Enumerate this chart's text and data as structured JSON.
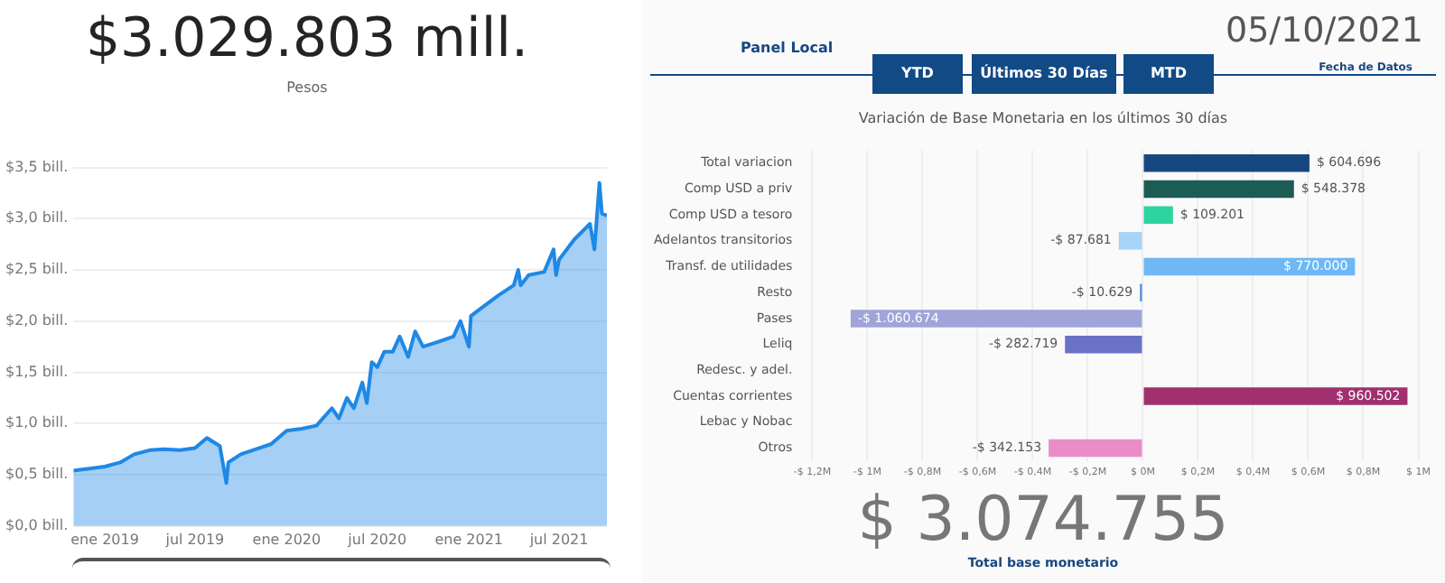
{
  "chart_data": [
    {
      "type": "area",
      "title": "$3.029.803 mill.",
      "subtitle": "Pesos",
      "x": [
        "2018-10-30",
        "2018-12-01",
        "2019-01-01",
        "2019-02-01",
        "2019-03-01",
        "2019-04-01",
        "2019-05-01",
        "2019-06-01",
        "2019-07-01",
        "2019-07-25",
        "2019-08-20",
        "2019-09-02",
        "2019-09-06",
        "2019-10-01",
        "2019-11-01",
        "2019-12-01",
        "2020-01-01",
        "2020-02-01",
        "2020-03-01",
        "2020-04-01",
        "2020-04-15",
        "2020-05-01",
        "2020-05-15",
        "2020-06-01",
        "2020-06-10",
        "2020-06-20",
        "2020-07-01",
        "2020-07-15",
        "2020-08-01",
        "2020-08-15",
        "2020-09-01",
        "2020-09-15",
        "2020-10-01",
        "2020-11-01",
        "2020-12-01",
        "2020-12-15",
        "2021-01-01",
        "2021-01-05",
        "2021-02-01",
        "2021-03-01",
        "2021-04-01",
        "2021-04-10",
        "2021-04-15",
        "2021-05-01",
        "2021-06-01",
        "2021-06-20",
        "2021-06-25",
        "2021-07-01",
        "2021-08-01",
        "2021-09-01",
        "2021-09-10",
        "2021-09-20",
        "2021-09-25",
        "2021-10-05"
      ],
      "series": [
        {
          "color": "#1e88e5",
          "values": [
            0.54,
            0.56,
            0.58,
            0.62,
            0.7,
            0.74,
            0.75,
            0.74,
            0.76,
            0.86,
            0.78,
            0.42,
            0.62,
            0.7,
            0.75,
            0.8,
            0.93,
            0.95,
            0.98,
            1.15,
            1.05,
            1.25,
            1.15,
            1.4,
            1.2,
            1.6,
            1.55,
            1.7,
            1.7,
            1.85,
            1.65,
            1.9,
            1.75,
            1.8,
            1.85,
            2.0,
            1.75,
            2.05,
            2.15,
            2.25,
            2.35,
            2.5,
            2.35,
            2.45,
            2.48,
            2.7,
            2.45,
            2.6,
            2.8,
            2.95,
            2.7,
            3.35,
            3.05,
            3.03
          ]
        }
      ],
      "xlim": [
        "2018-10-30",
        "2021-10-05"
      ],
      "xticks": [
        {
          "value": "2019-01-01",
          "label": "ene 2019"
        },
        {
          "value": "2019-07-01",
          "label": "jul 2019"
        },
        {
          "value": "2020-01-01",
          "label": "ene 2020"
        },
        {
          "value": "2020-07-01",
          "label": "jul 2020"
        },
        {
          "value": "2021-01-01",
          "label": "ene 2021"
        },
        {
          "value": "2021-07-01",
          "label": "jul 2021"
        }
      ],
      "ylim": [
        0,
        3.5
      ],
      "yticks": [
        {
          "value": 0,
          "label": "$0,0 bill."
        },
        {
          "value": 0.5,
          "label": "$0,5 bill."
        },
        {
          "value": 1,
          "label": "$1,0 bill."
        },
        {
          "value": 1.5,
          "label": "$1,5 bill."
        },
        {
          "value": 2,
          "label": "$2,0 bill."
        },
        {
          "value": 2.5,
          "label": "$2,5 bill."
        },
        {
          "value": 3,
          "label": "$3,0 bill."
        },
        {
          "value": 3.5,
          "label": "$3,5 bill."
        }
      ],
      "grid": "y",
      "legend": false
    },
    {
      "type": "bar",
      "orientation": "horizontal",
      "title": "Variación de Base Monetaria en los últimos 30 días",
      "categories": [
        "Total variacion",
        "Comp USD a priv",
        "Comp USD a tesoro",
        "Adelantos transitorios",
        "Transf. de utilidades",
        "Resto",
        "Pases",
        "Leliq",
        "Redesc. y adel.",
        "Cuentas corrientes",
        "Lebac y Nobac",
        "Otros"
      ],
      "values": [
        604696,
        548378,
        109201,
        -87681,
        770000,
        -10629,
        -1060674,
        -282719,
        null,
        960502,
        null,
        -342153
      ],
      "value_labels": [
        "$ 604.696",
        "$ 548.378",
        "$ 109.201",
        "-$ 87.681",
        "$ 770.000",
        "-$ 10.629",
        "-$ 1.060.674",
        "-$ 282.719",
        null,
        "$ 960.502",
        null,
        "-$ 342.153"
      ],
      "colors": [
        "#17477f",
        "#1b5c55",
        "#2dd4a0",
        "#a8d4f8",
        "#6fb8f5",
        "#4a90d9",
        "#a0a4d8",
        "#6a72c8",
        "#888888",
        "#a0306e",
        "#888888",
        "#e98cc8"
      ],
      "xlim": [
        -1200000,
        1000000
      ],
      "xticks": [
        {
          "value": -1200000,
          "label": "-$ 1,2M"
        },
        {
          "value": -1000000,
          "label": "-$ 1M"
        },
        {
          "value": -800000,
          "label": "-$ 0,8M"
        },
        {
          "value": -600000,
          "label": "-$ 0,6M"
        },
        {
          "value": -400000,
          "label": "-$ 0,4M"
        },
        {
          "value": -200000,
          "label": "-$ 0,2M"
        },
        {
          "value": 0,
          "label": "$ 0M"
        },
        {
          "value": 200000,
          "label": "$ 0,2M"
        },
        {
          "value": 400000,
          "label": "$ 0,4M"
        },
        {
          "value": 600000,
          "label": "$ 0,6M"
        },
        {
          "value": 800000,
          "label": "$ 0,8M"
        },
        {
          "value": 1000000,
          "label": "$ 1M"
        }
      ],
      "grid": "x",
      "legend": false,
      "annotations": [
        "Panel Local",
        "YTD",
        "Últimos 30 Días",
        "MTD",
        "05/10/2021",
        "Fecha de Datos",
        "$ 3.074.755",
        "Total base monetario"
      ]
    }
  ]
}
